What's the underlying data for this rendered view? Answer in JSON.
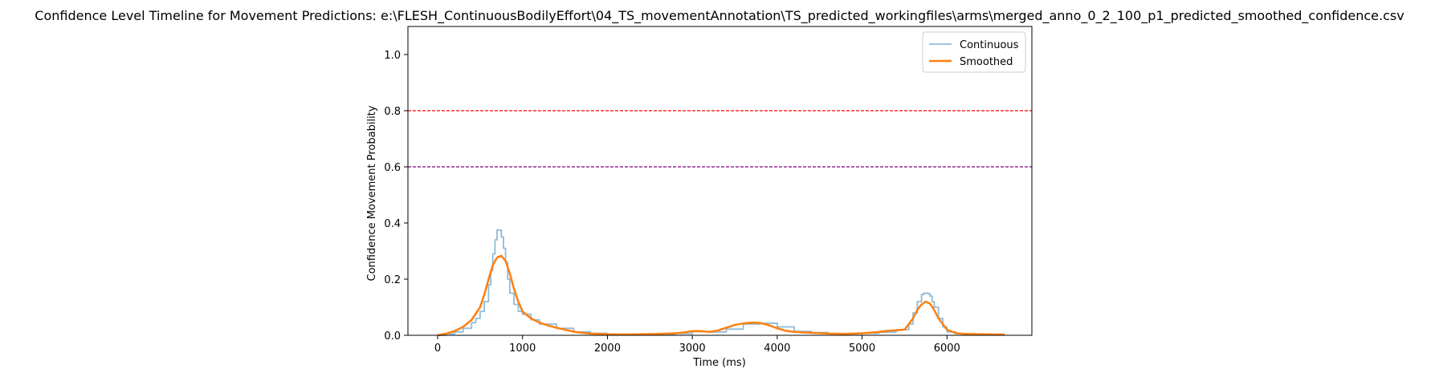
{
  "chart_data": {
    "type": "line",
    "title": "Confidence Level Timeline for Movement Predictions: e:\\FLESH_ContinuousBodilyEffort\\04_TS_movementAnnotation\\TS_predicted_workingfiles\\arms\\merged_anno_0_2_100_p1_predicted_smoothed_confidence.csv",
    "xlabel": "Time (ms)",
    "ylabel": "Confidence Movement Probability",
    "xlim": [
      -350,
      7000
    ],
    "ylim": [
      0,
      1.1
    ],
    "xticks": [
      0,
      1000,
      2000,
      3000,
      4000,
      5000,
      6000
    ],
    "yticks": [
      0.0,
      0.2,
      0.4,
      0.6,
      0.8,
      1.0
    ],
    "xtick_labels": [
      "0",
      "1000",
      "2000",
      "3000",
      "4000",
      "5000",
      "6000"
    ],
    "ytick_labels": [
      "0.0",
      "0.2",
      "0.4",
      "0.6",
      "0.8",
      "1.0"
    ],
    "grid": false,
    "legend_position": "top-right",
    "hlines": [
      {
        "y": 0.8,
        "color": "#ff0000",
        "style": "dashed"
      },
      {
        "y": 0.6,
        "color": "#800080",
        "style": "dashed"
      }
    ],
    "series": [
      {
        "name": "Continuous",
        "color": "#1f77b4",
        "opacity": 0.5,
        "style": "step",
        "x": [
          0,
          100,
          200,
          300,
          400,
          450,
          500,
          550,
          600,
          625,
          650,
          675,
          700,
          725,
          750,
          775,
          800,
          825,
          850,
          900,
          950,
          1000,
          1100,
          1200,
          1400,
          1600,
          1800,
          2000,
          2200,
          2400,
          2600,
          2800,
          3000,
          3200,
          3400,
          3600,
          3800,
          4000,
          4200,
          4400,
          4600,
          4800,
          5000,
          5200,
          5400,
          5500,
          5550,
          5600,
          5650,
          5700,
          5725,
          5750,
          5775,
          5800,
          5825,
          5850,
          5900,
          5950,
          6000,
          6100,
          6200,
          6400,
          6600,
          6680
        ],
        "values": [
          0.0,
          0.005,
          0.012,
          0.025,
          0.045,
          0.06,
          0.085,
          0.12,
          0.18,
          0.23,
          0.29,
          0.34,
          0.375,
          0.375,
          0.35,
          0.31,
          0.26,
          0.2,
          0.15,
          0.11,
          0.085,
          0.075,
          0.055,
          0.04,
          0.025,
          0.012,
          0.007,
          0.004,
          0.003,
          0.003,
          0.004,
          0.006,
          0.013,
          0.012,
          0.022,
          0.04,
          0.043,
          0.03,
          0.014,
          0.01,
          0.006,
          0.005,
          0.007,
          0.011,
          0.02,
          0.02,
          0.04,
          0.08,
          0.12,
          0.145,
          0.15,
          0.15,
          0.148,
          0.14,
          0.12,
          0.1,
          0.06,
          0.03,
          0.012,
          0.006,
          0.004,
          0.003,
          0.002,
          0.002
        ]
      },
      {
        "name": "Smoothed",
        "color": "#ff7f0e",
        "opacity": 1,
        "style": "line",
        "x": [
          0,
          100,
          200,
          300,
          400,
          500,
          550,
          600,
          650,
          700,
          750,
          800,
          850,
          900,
          950,
          1000,
          1100,
          1200,
          1300,
          1400,
          1500,
          1600,
          1700,
          1800,
          2000,
          2200,
          2400,
          2600,
          2800,
          2900,
          3000,
          3100,
          3200,
          3300,
          3400,
          3500,
          3600,
          3700,
          3800,
          3900,
          4000,
          4100,
          4200,
          4400,
          4600,
          4800,
          5000,
          5200,
          5300,
          5400,
          5500,
          5600,
          5650,
          5700,
          5750,
          5800,
          5850,
          5900,
          6000,
          6100,
          6200,
          6400,
          6600,
          6680
        ],
        "values": [
          0.0,
          0.006,
          0.015,
          0.03,
          0.055,
          0.1,
          0.145,
          0.2,
          0.25,
          0.277,
          0.283,
          0.265,
          0.22,
          0.165,
          0.12,
          0.085,
          0.06,
          0.045,
          0.035,
          0.027,
          0.02,
          0.013,
          0.009,
          0.006,
          0.004,
          0.003,
          0.004,
          0.005,
          0.007,
          0.01,
          0.015,
          0.015,
          0.012,
          0.017,
          0.027,
          0.037,
          0.042,
          0.045,
          0.044,
          0.036,
          0.025,
          0.016,
          0.012,
          0.009,
          0.006,
          0.005,
          0.007,
          0.012,
          0.016,
          0.018,
          0.02,
          0.06,
          0.09,
          0.11,
          0.12,
          0.113,
          0.09,
          0.06,
          0.02,
          0.008,
          0.005,
          0.004,
          0.003,
          0.003
        ]
      }
    ]
  }
}
